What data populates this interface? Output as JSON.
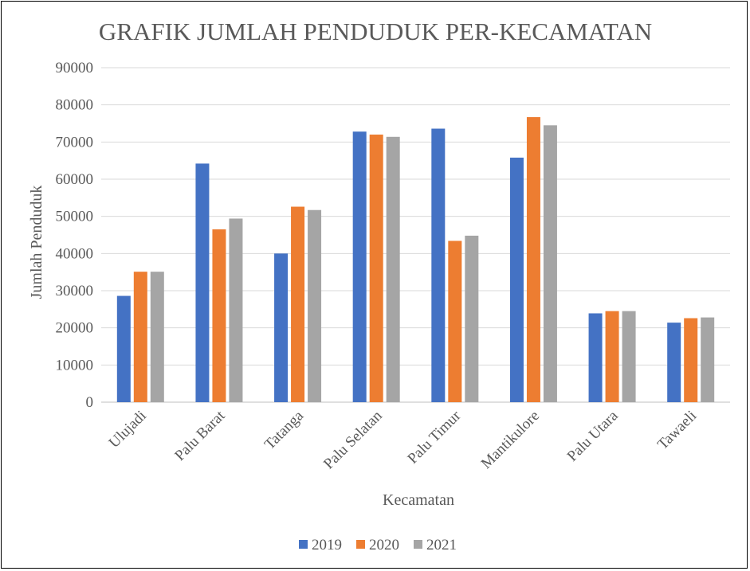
{
  "chart_data": {
    "type": "bar",
    "title": "GRAFIK JUMLAH PENDUDUK PER-KECAMATAN",
    "xlabel": "Kecamatan",
    "ylabel": "Jumlah Penduduk",
    "ylim": [
      0,
      90000
    ],
    "yticks": [
      "0",
      "10000",
      "20000",
      "30000",
      "40000",
      "50000",
      "60000",
      "70000",
      "80000",
      "90000"
    ],
    "grid": true,
    "legend_position": "bottom",
    "categories": [
      "Ulujadi",
      "Palu Barat",
      "Tatanga",
      "Palu Selatan",
      "Palu Timur",
      "Mantikulore",
      "Palu Utara",
      "Tawaeli"
    ],
    "series": [
      {
        "name": "2019",
        "color": "#4472C4",
        "values": [
          28600,
          64200,
          40000,
          72800,
          73600,
          65800,
          23900,
          21400
        ]
      },
      {
        "name": "2020",
        "color": "#ED7D31",
        "values": [
          35100,
          46500,
          52600,
          72000,
          43400,
          76700,
          24500,
          22600
        ]
      },
      {
        "name": "2021",
        "color": "#A5A5A5",
        "values": [
          35100,
          49400,
          51700,
          71400,
          44800,
          74500,
          24500,
          22800
        ]
      }
    ]
  }
}
